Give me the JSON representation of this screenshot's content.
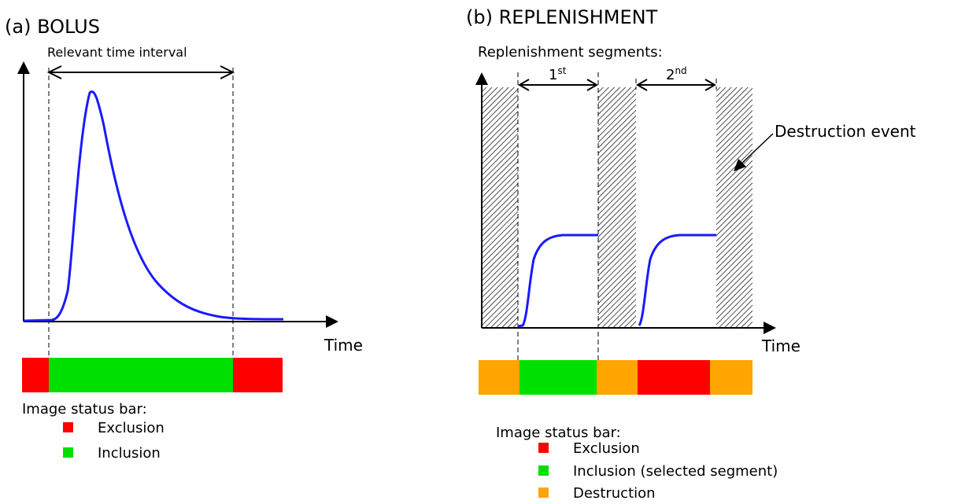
{
  "panel_a": {
    "title": "(a) BOLUS",
    "interval_label": "Relevant time interval",
    "x_axis_label": "Time",
    "status_bar_segments": [
      "exclusion",
      "inclusion",
      "exclusion"
    ],
    "legend": {
      "heading": "Image status bar:",
      "items": [
        {
          "key": "exclusion",
          "label": "Exclusion"
        },
        {
          "key": "inclusion",
          "label": "Inclusion"
        }
      ]
    }
  },
  "panel_b": {
    "title": "(b) REPLENISHMENT",
    "segments_label": "Replenishment segments:",
    "segment_1": {
      "num": "1",
      "suffix": "st"
    },
    "segment_2": {
      "num": "2",
      "suffix": "nd"
    },
    "destruction_event_label": "Destruction event",
    "x_axis_label": "Time",
    "status_bar_segments": [
      "destruction",
      "inclusion",
      "destruction",
      "exclusion",
      "destruction"
    ],
    "legend": {
      "heading": "Image status bar:",
      "items": [
        {
          "key": "exclusion",
          "label": "Exclusion"
        },
        {
          "key": "inclusion",
          "label": "Inclusion (selected segment)"
        },
        {
          "key": "destruction",
          "label": "Destruction"
        }
      ]
    }
  },
  "colors": {
    "exclusion": "#ff0000",
    "inclusion": "#00e000",
    "destruction": "#ffa500",
    "curve": "#1a1aff",
    "axis": "#000000"
  }
}
